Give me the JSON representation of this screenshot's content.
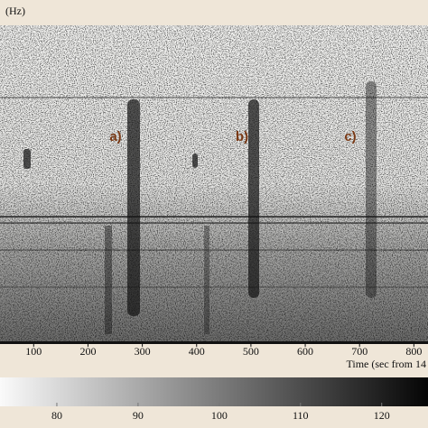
{
  "chart_data": {
    "type": "spectrogram",
    "y_unit": "(Hz)",
    "xlabel": "Time (sec from 14",
    "xlim": [
      38,
      826
    ],
    "xticks": [
      100,
      200,
      300,
      400,
      500,
      600,
      700,
      800
    ],
    "annotations": [
      "a)",
      "b)",
      "c)"
    ],
    "colorbar": {
      "lim": [
        73,
        125.7
      ],
      "ticks": [
        80,
        90,
        100,
        110,
        120
      ]
    }
  }
}
